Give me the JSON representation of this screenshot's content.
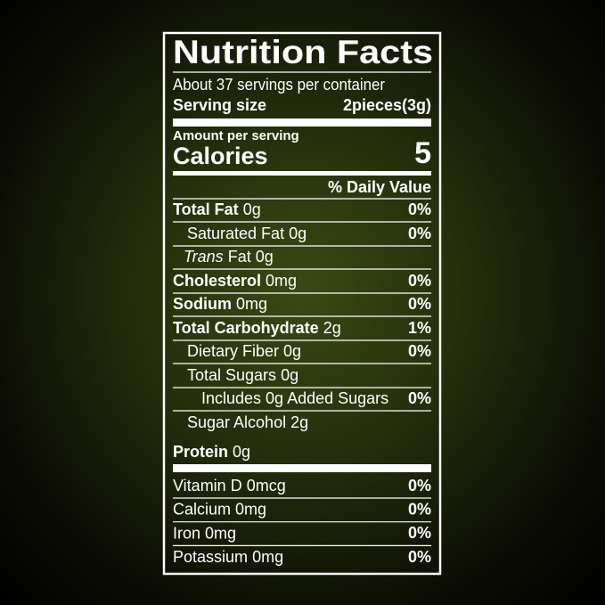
{
  "title": "Nutrition Facts",
  "servings": "About 37 servings per container",
  "serving_size": {
    "label": "Serving size",
    "value": "2pieces(3g)"
  },
  "amount_per_serving": "Amount per serving",
  "calories": {
    "label": "Calories",
    "value": 5
  },
  "daily_value_header": "% Daily Value",
  "nutrients": [
    {
      "name": "Total Fat",
      "amount": "0g",
      "dv": "0%"
    },
    {
      "name": "Saturated Fat",
      "amount": "0g",
      "dv": "0%"
    },
    {
      "name_italic": "Trans",
      "name": "Fat",
      "amount": "0g"
    },
    {
      "name": "Cholesterol",
      "amount": "0mg",
      "dv": "0%"
    },
    {
      "name": "Sodium",
      "amount": "0mg",
      "dv": "0%"
    },
    {
      "name": "Total Carbohydrate",
      "amount": "2g",
      "dv": "1%"
    },
    {
      "name": "Dietary Fiber",
      "amount": "0g",
      "dv": "0%"
    },
    {
      "name": "Total Sugars",
      "amount": "0g"
    },
    {
      "name": "Includes 0g Added Sugars",
      "dv": "0%"
    },
    {
      "name": "Sugar Alcohol",
      "amount": "2g"
    },
    {
      "name": "Protein",
      "amount": "0g"
    }
  ],
  "vitamins": [
    {
      "name": "Vitamin D",
      "amount": "0mcg",
      "dv": "0%"
    },
    {
      "name": "Calcium",
      "amount": "0mg",
      "dv": "0%"
    },
    {
      "name": "Iron",
      "amount": "0mg",
      "dv": "0%"
    },
    {
      "name": "Potassium",
      "amount": "0mg",
      "dv": "0%"
    }
  ]
}
